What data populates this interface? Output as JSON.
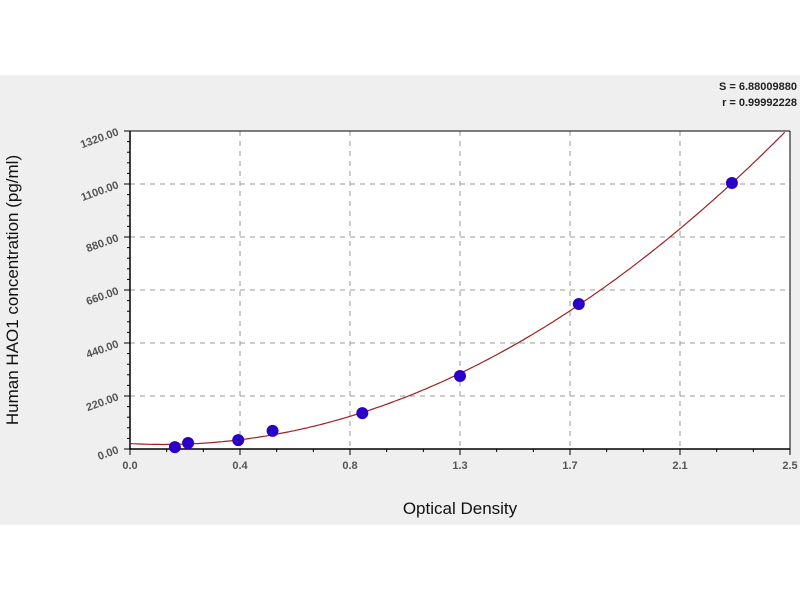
{
  "chart_data": {
    "type": "scatter",
    "xlabel": "Optical Density",
    "ylabel": "Human HAO1 concentration (pg/ml)",
    "xlim": [
      0,
      2.5
    ],
    "ylim": [
      0,
      1320
    ],
    "x_ticks": [
      0,
      0.4167,
      0.8333,
      1.25,
      1.6667,
      2.0833,
      2.5
    ],
    "x_tick_labels": [
      "0.0",
      "0.4",
      "0.8",
      "1.3",
      "1.7",
      "2.1",
      "2.5"
    ],
    "y_ticks": [
      0,
      220,
      440,
      660,
      880,
      1100,
      1320
    ],
    "y_tick_labels": [
      "0.00",
      "220.00",
      "440.00",
      "660.00",
      "880.00",
      "1100.00",
      "1320.00"
    ],
    "grid": true,
    "fit": "curve",
    "stats": [
      "S = 6.88009880",
      "r = 0.99992228"
    ],
    "points": {
      "x": [
        0.17,
        0.22,
        0.41,
        0.54,
        0.88,
        1.25,
        1.7,
        2.28
      ],
      "y": [
        8,
        25,
        37,
        75,
        149,
        303,
        602,
        1104
      ]
    },
    "colors": {
      "point": "#2a00c8",
      "curve": "#a02020",
      "grid": "#9a9a9a"
    }
  }
}
